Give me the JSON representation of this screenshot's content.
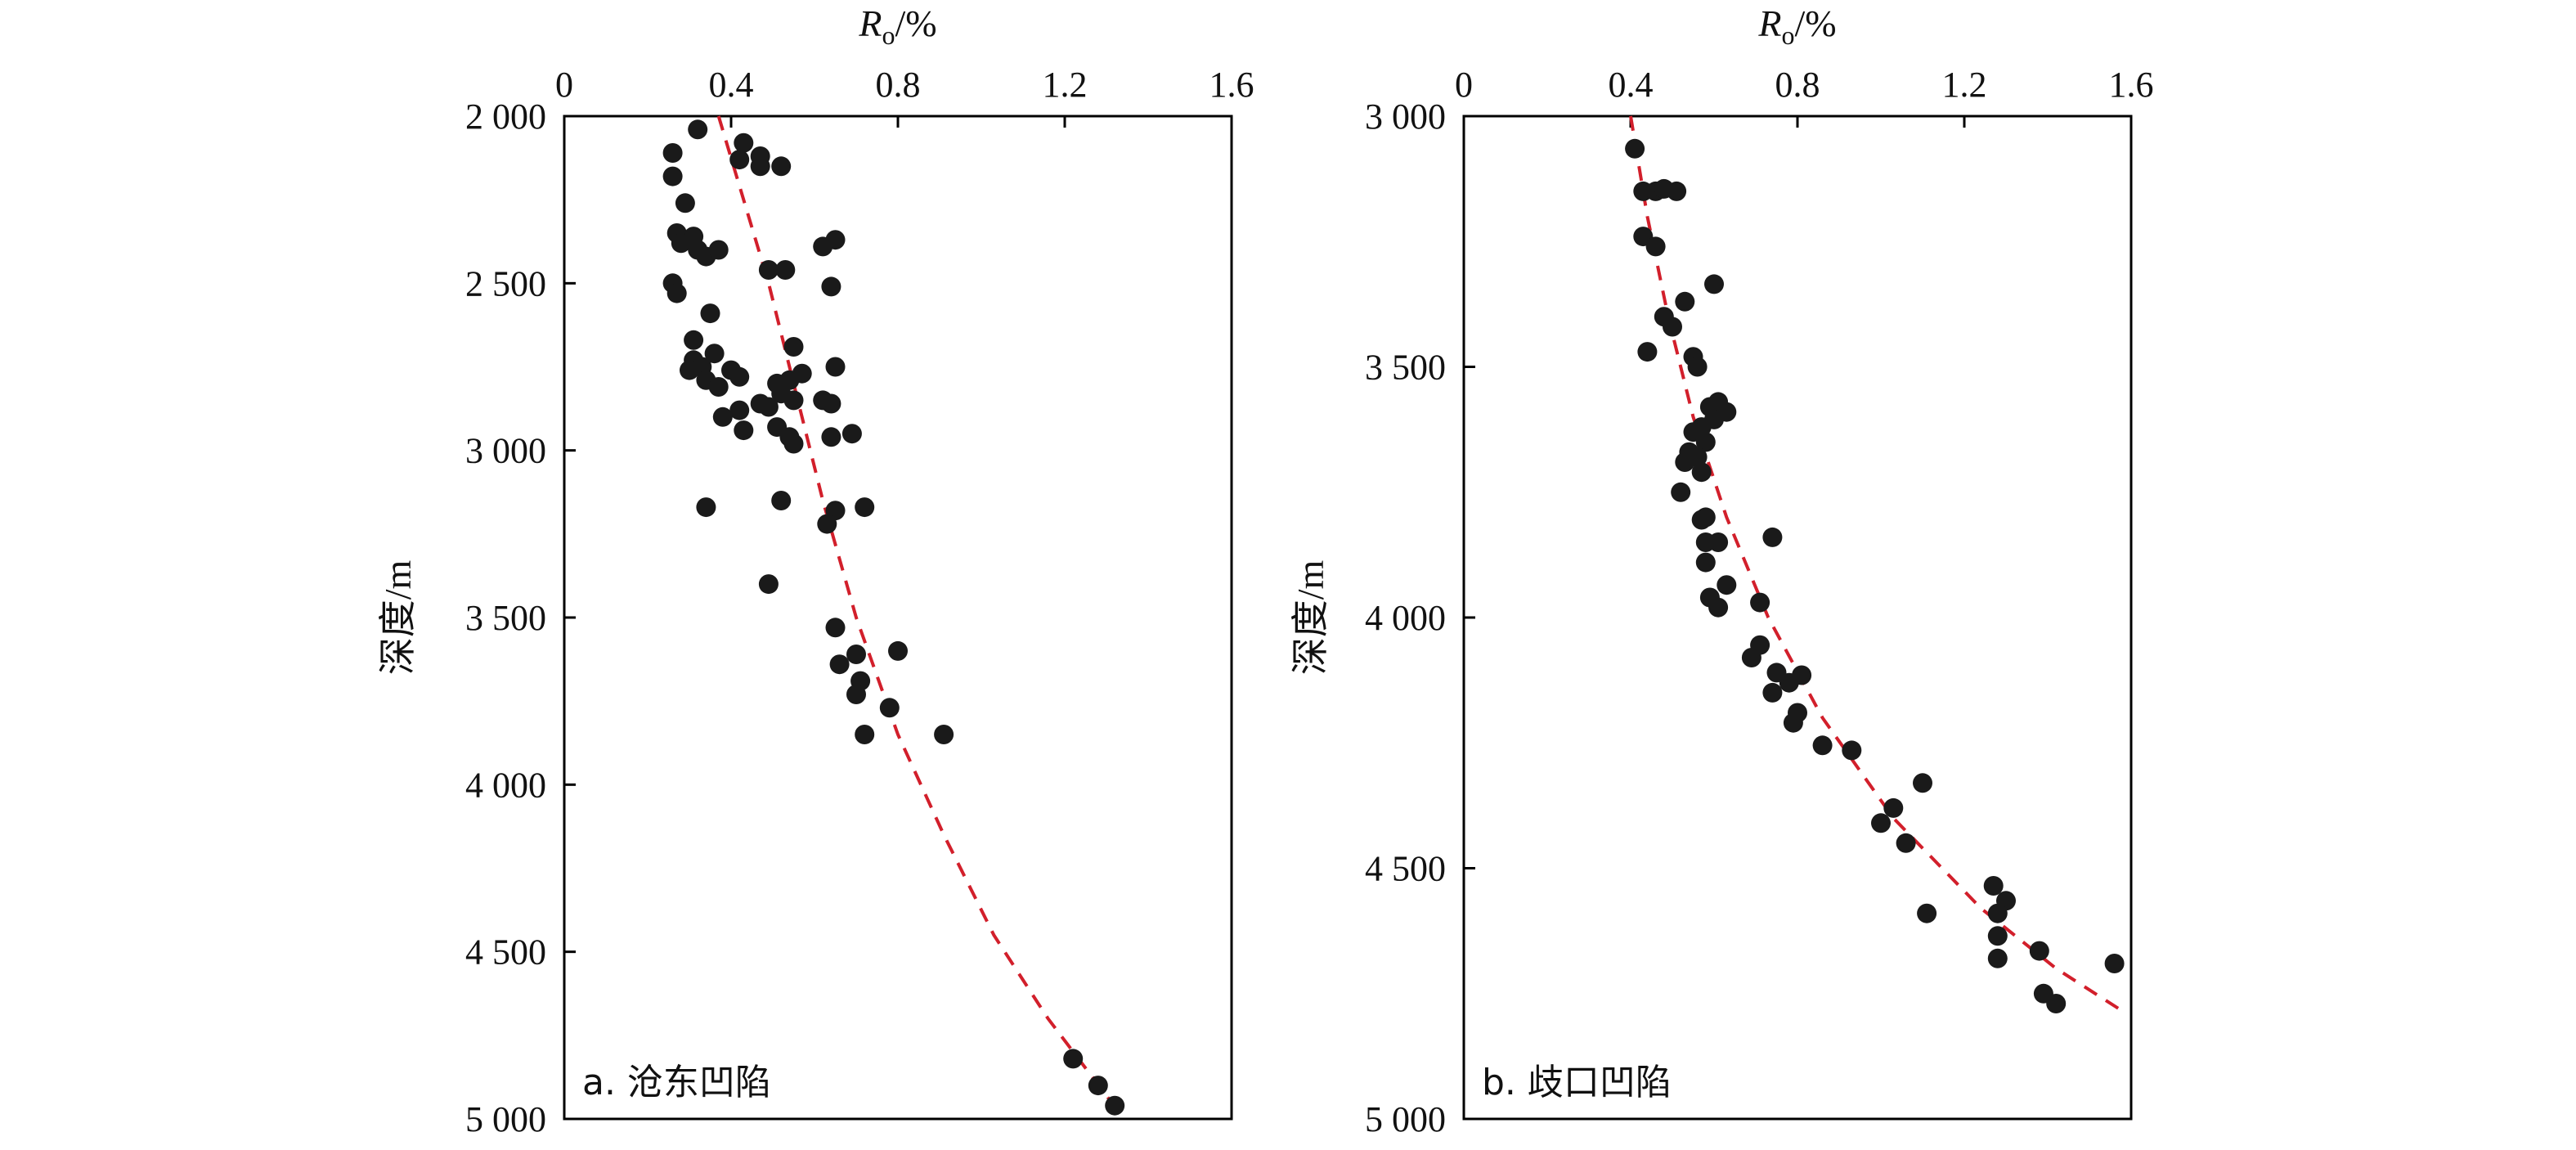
{
  "chart_data": [
    {
      "type": "scatter",
      "panel_label": "a. 沧东凹陷",
      "xlabel_main": "R",
      "xlabel_sub": "o",
      "xlabel_suffix": "/%",
      "ylabel": "深度/m",
      "x_axis_position": "top",
      "y_axis_inverted": true,
      "xlim": [
        0,
        1.6
      ],
      "ylim": [
        2000,
        5000
      ],
      "xticks": [
        0,
        0.4,
        0.8,
        1.2,
        1.6
      ],
      "xtick_labels": [
        "0",
        "0.4",
        "0.8",
        "1.2",
        "1.6"
      ],
      "yticks": [
        2000,
        2500,
        3000,
        3500,
        4000,
        4500,
        5000
      ],
      "ytick_labels": [
        "2 000",
        "2 500",
        "3 000",
        "3 500",
        "4 000",
        "4 500",
        "5 000"
      ],
      "grid": false,
      "point_color": "#1a1a1a",
      "trend_color": "#d21f2b",
      "points": [
        {
          "x": 0.32,
          "y": 2040
        },
        {
          "x": 0.43,
          "y": 2080
        },
        {
          "x": 0.47,
          "y": 2120
        },
        {
          "x": 0.26,
          "y": 2110
        },
        {
          "x": 0.42,
          "y": 2130
        },
        {
          "x": 0.47,
          "y": 2150
        },
        {
          "x": 0.52,
          "y": 2150
        },
        {
          "x": 0.26,
          "y": 2180
        },
        {
          "x": 0.29,
          "y": 2260
        },
        {
          "x": 0.27,
          "y": 2350
        },
        {
          "x": 0.31,
          "y": 2360
        },
        {
          "x": 0.28,
          "y": 2380
        },
        {
          "x": 0.32,
          "y": 2400
        },
        {
          "x": 0.34,
          "y": 2420
        },
        {
          "x": 0.37,
          "y": 2400
        },
        {
          "x": 0.65,
          "y": 2370
        },
        {
          "x": 0.62,
          "y": 2390
        },
        {
          "x": 0.49,
          "y": 2460
        },
        {
          "x": 0.53,
          "y": 2460
        },
        {
          "x": 0.26,
          "y": 2500
        },
        {
          "x": 0.27,
          "y": 2530
        },
        {
          "x": 0.64,
          "y": 2510
        },
        {
          "x": 0.35,
          "y": 2590
        },
        {
          "x": 0.31,
          "y": 2670
        },
        {
          "x": 0.55,
          "y": 2690
        },
        {
          "x": 0.36,
          "y": 2710
        },
        {
          "x": 0.31,
          "y": 2730
        },
        {
          "x": 0.33,
          "y": 2750
        },
        {
          "x": 0.3,
          "y": 2760
        },
        {
          "x": 0.4,
          "y": 2760
        },
        {
          "x": 0.65,
          "y": 2750
        },
        {
          "x": 0.42,
          "y": 2780
        },
        {
          "x": 0.57,
          "y": 2770
        },
        {
          "x": 0.54,
          "y": 2790
        },
        {
          "x": 0.34,
          "y": 2790
        },
        {
          "x": 0.51,
          "y": 2800
        },
        {
          "x": 0.37,
          "y": 2810
        },
        {
          "x": 0.52,
          "y": 2830
        },
        {
          "x": 0.55,
          "y": 2850
        },
        {
          "x": 0.62,
          "y": 2850
        },
        {
          "x": 0.64,
          "y": 2860
        },
        {
          "x": 0.47,
          "y": 2860
        },
        {
          "x": 0.49,
          "y": 2870
        },
        {
          "x": 0.42,
          "y": 2880
        },
        {
          "x": 0.38,
          "y": 2900
        },
        {
          "x": 0.51,
          "y": 2930
        },
        {
          "x": 0.43,
          "y": 2940
        },
        {
          "x": 0.54,
          "y": 2960
        },
        {
          "x": 0.64,
          "y": 2960
        },
        {
          "x": 0.69,
          "y": 2950
        },
        {
          "x": 0.55,
          "y": 2980
        },
        {
          "x": 0.52,
          "y": 3150
        },
        {
          "x": 0.34,
          "y": 3170
        },
        {
          "x": 0.65,
          "y": 3180
        },
        {
          "x": 0.72,
          "y": 3170
        },
        {
          "x": 0.63,
          "y": 3220
        },
        {
          "x": 0.49,
          "y": 3400
        },
        {
          "x": 0.65,
          "y": 3530
        },
        {
          "x": 0.7,
          "y": 3610
        },
        {
          "x": 0.8,
          "y": 3600
        },
        {
          "x": 0.66,
          "y": 3640
        },
        {
          "x": 0.71,
          "y": 3690
        },
        {
          "x": 0.7,
          "y": 3730
        },
        {
          "x": 0.78,
          "y": 3770
        },
        {
          "x": 0.72,
          "y": 3850
        },
        {
          "x": 0.91,
          "y": 3850
        },
        {
          "x": 1.22,
          "y": 4820
        },
        {
          "x": 1.28,
          "y": 4900
        },
        {
          "x": 1.32,
          "y": 4960
        }
      ],
      "trend": [
        {
          "x": 0.37,
          "y": 2000
        },
        {
          "x": 0.43,
          "y": 2250
        },
        {
          "x": 0.49,
          "y": 2500
        },
        {
          "x": 0.55,
          "y": 2800
        },
        {
          "x": 0.62,
          "y": 3150
        },
        {
          "x": 0.7,
          "y": 3500
        },
        {
          "x": 0.8,
          "y": 3850
        },
        {
          "x": 0.91,
          "y": 4150
        },
        {
          "x": 1.03,
          "y": 4450
        },
        {
          "x": 1.16,
          "y": 4700
        },
        {
          "x": 1.33,
          "y": 4980
        }
      ]
    },
    {
      "type": "scatter",
      "panel_label": "b. 歧口凹陷",
      "xlabel_main": "R",
      "xlabel_sub": "o",
      "xlabel_suffix": "/%",
      "ylabel": "深度/m",
      "x_axis_position": "top",
      "y_axis_inverted": true,
      "xlim": [
        0,
        1.6
      ],
      "ylim": [
        3000,
        5000
      ],
      "xticks": [
        0,
        0.4,
        0.8,
        1.2,
        1.6
      ],
      "xtick_labels": [
        "0",
        "0.4",
        "0.8",
        "1.2",
        "1.6"
      ],
      "yticks": [
        3000,
        3500,
        4000,
        4500,
        5000
      ],
      "ytick_labels": [
        "3 000",
        "3 500",
        "4 000",
        "4 500",
        "5 000"
      ],
      "grid": false,
      "point_color": "#1a1a1a",
      "trend_color": "#d21f2b",
      "points": [
        {
          "x": 0.41,
          "y": 3065
        },
        {
          "x": 0.43,
          "y": 3150
        },
        {
          "x": 0.46,
          "y": 3150
        },
        {
          "x": 0.48,
          "y": 3145
        },
        {
          "x": 0.51,
          "y": 3150
        },
        {
          "x": 0.43,
          "y": 3240
        },
        {
          "x": 0.46,
          "y": 3260
        },
        {
          "x": 0.6,
          "y": 3335
        },
        {
          "x": 0.53,
          "y": 3370
        },
        {
          "x": 0.48,
          "y": 3400
        },
        {
          "x": 0.5,
          "y": 3420
        },
        {
          "x": 0.44,
          "y": 3470
        },
        {
          "x": 0.55,
          "y": 3480
        },
        {
          "x": 0.56,
          "y": 3500
        },
        {
          "x": 0.61,
          "y": 3570
        },
        {
          "x": 0.59,
          "y": 3580
        },
        {
          "x": 0.63,
          "y": 3590
        },
        {
          "x": 0.6,
          "y": 3605
        },
        {
          "x": 0.57,
          "y": 3620
        },
        {
          "x": 0.55,
          "y": 3630
        },
        {
          "x": 0.58,
          "y": 3650
        },
        {
          "x": 0.54,
          "y": 3670
        },
        {
          "x": 0.56,
          "y": 3680
        },
        {
          "x": 0.53,
          "y": 3690
        },
        {
          "x": 0.57,
          "y": 3710
        },
        {
          "x": 0.52,
          "y": 3750
        },
        {
          "x": 0.58,
          "y": 3800
        },
        {
          "x": 0.57,
          "y": 3805
        },
        {
          "x": 0.61,
          "y": 3850
        },
        {
          "x": 0.58,
          "y": 3850
        },
        {
          "x": 0.74,
          "y": 3840
        },
        {
          "x": 0.58,
          "y": 3890
        },
        {
          "x": 0.63,
          "y": 3935
        },
        {
          "x": 0.59,
          "y": 3960
        },
        {
          "x": 0.61,
          "y": 3980
        },
        {
          "x": 0.71,
          "y": 3970
        },
        {
          "x": 0.71,
          "y": 4055
        },
        {
          "x": 0.69,
          "y": 4080
        },
        {
          "x": 0.75,
          "y": 4110
        },
        {
          "x": 0.81,
          "y": 4115
        },
        {
          "x": 0.78,
          "y": 4130
        },
        {
          "x": 0.74,
          "y": 4150
        },
        {
          "x": 0.8,
          "y": 4190
        },
        {
          "x": 0.79,
          "y": 4210
        },
        {
          "x": 0.86,
          "y": 4255
        },
        {
          "x": 0.93,
          "y": 4265
        },
        {
          "x": 1.1,
          "y": 4330
        },
        {
          "x": 1.03,
          "y": 4380
        },
        {
          "x": 1.0,
          "y": 4410
        },
        {
          "x": 1.06,
          "y": 4450
        },
        {
          "x": 1.27,
          "y": 4535
        },
        {
          "x": 1.3,
          "y": 4565
        },
        {
          "x": 1.28,
          "y": 4590
        },
        {
          "x": 1.11,
          "y": 4590
        },
        {
          "x": 1.28,
          "y": 4635
        },
        {
          "x": 1.38,
          "y": 4665
        },
        {
          "x": 1.28,
          "y": 4680
        },
        {
          "x": 1.56,
          "y": 4690
        },
        {
          "x": 1.39,
          "y": 4750
        },
        {
          "x": 1.42,
          "y": 4770
        }
      ],
      "trend": [
        {
          "x": 0.4,
          "y": 3000
        },
        {
          "x": 0.44,
          "y": 3200
        },
        {
          "x": 0.49,
          "y": 3400
        },
        {
          "x": 0.55,
          "y": 3600
        },
        {
          "x": 0.63,
          "y": 3800
        },
        {
          "x": 0.73,
          "y": 4000
        },
        {
          "x": 0.86,
          "y": 4200
        },
        {
          "x": 1.03,
          "y": 4400
        },
        {
          "x": 1.24,
          "y": 4580
        },
        {
          "x": 1.42,
          "y": 4700
        },
        {
          "x": 1.57,
          "y": 4780
        }
      ]
    }
  ]
}
